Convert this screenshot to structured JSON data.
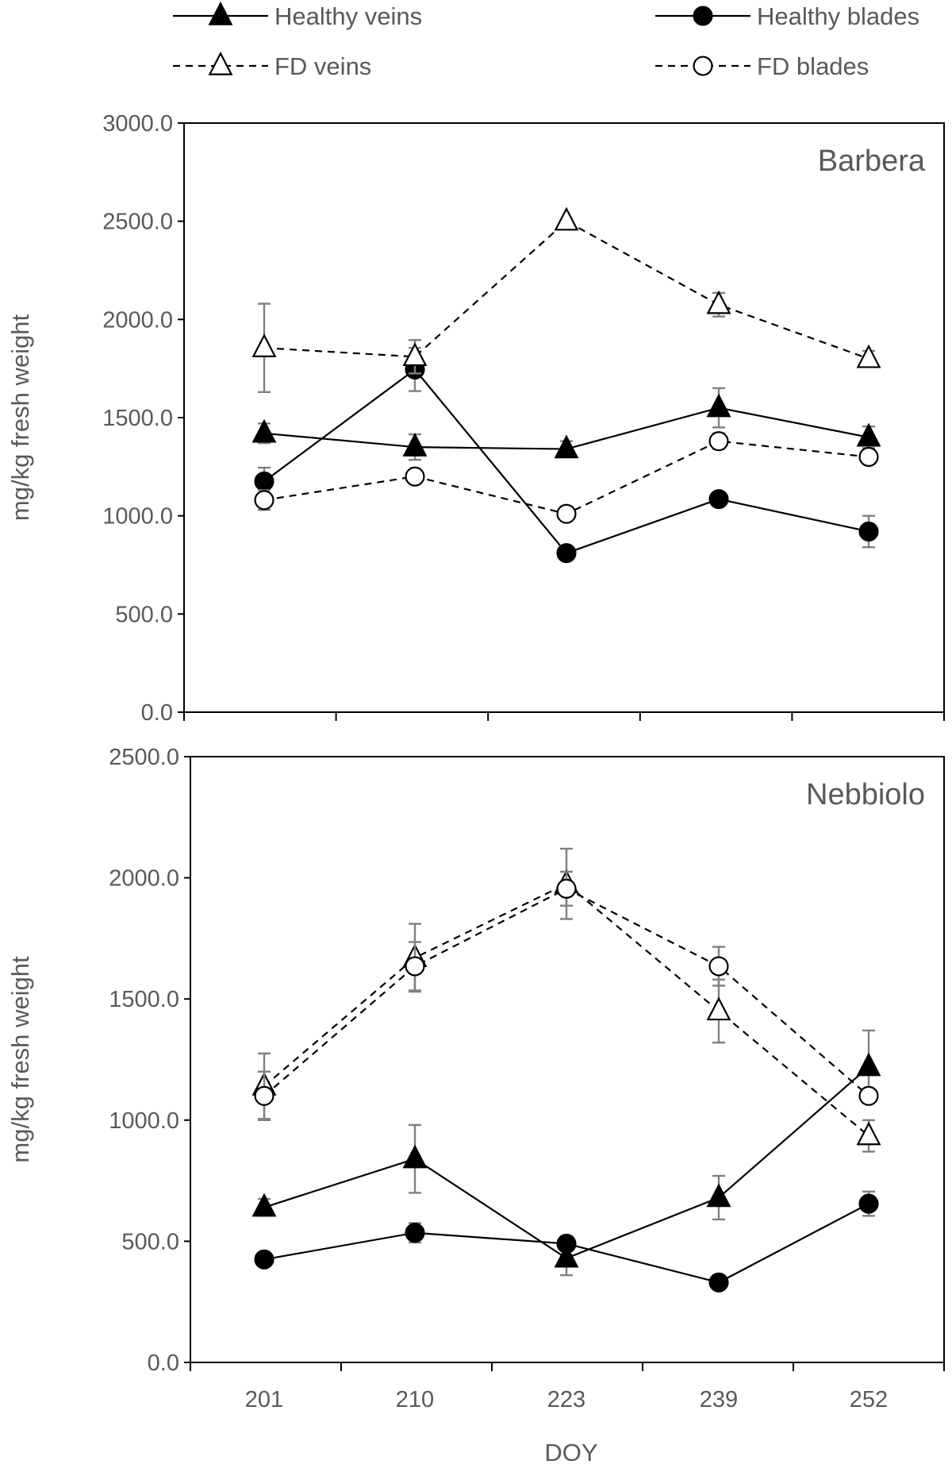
{
  "legend": [
    {
      "key": "hv",
      "label": "Healthy veins"
    },
    {
      "key": "hb",
      "label": "Healthy blades"
    },
    {
      "key": "fv",
      "label": "FD veins"
    },
    {
      "key": "fb",
      "label": "FD blades"
    }
  ],
  "xlabel": "DOY",
  "chart_data": [
    {
      "type": "line",
      "title": "Barbera",
      "xlabel": "",
      "ylabel": "mg/kg fresh weight",
      "categories": [
        "201",
        "210",
        "223",
        "239",
        "252"
      ],
      "ylim": [
        0,
        3000
      ],
      "ytick_step": 500,
      "yticks": [
        "0.0",
        "500.0",
        "1000.0",
        "1500.0",
        "2000.0",
        "2500.0",
        "3000.0"
      ],
      "show_xtick_labels": false,
      "grid": false,
      "series": [
        {
          "key": "hv",
          "name": "Healthy veins",
          "marker": "triangle",
          "filled": true,
          "dashed": false,
          "values": [
            1420,
            1350,
            1340,
            1550,
            1400
          ],
          "err": [
            50,
            65,
            40,
            100,
            55
          ]
        },
        {
          "key": "hb",
          "name": "Healthy blades",
          "marker": "circle",
          "filled": true,
          "dashed": false,
          "values": [
            1175,
            1745,
            810,
            1085,
            920
          ],
          "err": [
            70,
            110,
            0,
            0,
            80
          ]
        },
        {
          "key": "fv",
          "name": "FD veins",
          "marker": "triangle",
          "filled": false,
          "dashed": true,
          "values": [
            1855,
            1810,
            2500,
            2075,
            1800
          ],
          "err": [
            225,
            85,
            0,
            60,
            40
          ]
        },
        {
          "key": "fb",
          "name": "FD blades",
          "marker": "circle",
          "filled": false,
          "dashed": true,
          "values": [
            1080,
            1200,
            1010,
            1380,
            1300
          ],
          "err": [
            50,
            0,
            0,
            40,
            0
          ]
        }
      ]
    },
    {
      "type": "line",
      "title": "Nebbiolo",
      "xlabel": "DOY",
      "ylabel": "mg/kg fresh weight",
      "categories": [
        "201",
        "210",
        "223",
        "239",
        "252"
      ],
      "ylim": [
        0,
        2500
      ],
      "ytick_step": 500,
      "yticks": [
        "0.0",
        "500.0",
        "1000.0",
        "1500.0",
        "2000.0",
        "2500.0"
      ],
      "show_xtick_labels": true,
      "grid": false,
      "series": [
        {
          "key": "hv",
          "name": "Healthy veins",
          "marker": "triangle",
          "filled": true,
          "dashed": false,
          "values": [
            640,
            840,
            430,
            680,
            1220
          ],
          "err": [
            35,
            140,
            70,
            90,
            150
          ]
        },
        {
          "key": "hb",
          "name": "Healthy blades",
          "marker": "circle",
          "filled": true,
          "dashed": false,
          "values": [
            425,
            535,
            490,
            330,
            655
          ],
          "err": [
            0,
            40,
            30,
            0,
            50
          ]
        },
        {
          "key": "fv",
          "name": "FD veins",
          "marker": "triangle",
          "filled": false,
          "dashed": true,
          "values": [
            1140,
            1670,
            1975,
            1450,
            935
          ],
          "err": [
            135,
            140,
            145,
            130,
            65
          ]
        },
        {
          "key": "fb",
          "name": "FD blades",
          "marker": "circle",
          "filled": false,
          "dashed": true,
          "values": [
            1100,
            1635,
            1955,
            1635,
            1100
          ],
          "err": [
            100,
            100,
            70,
            80,
            0
          ]
        }
      ]
    }
  ]
}
